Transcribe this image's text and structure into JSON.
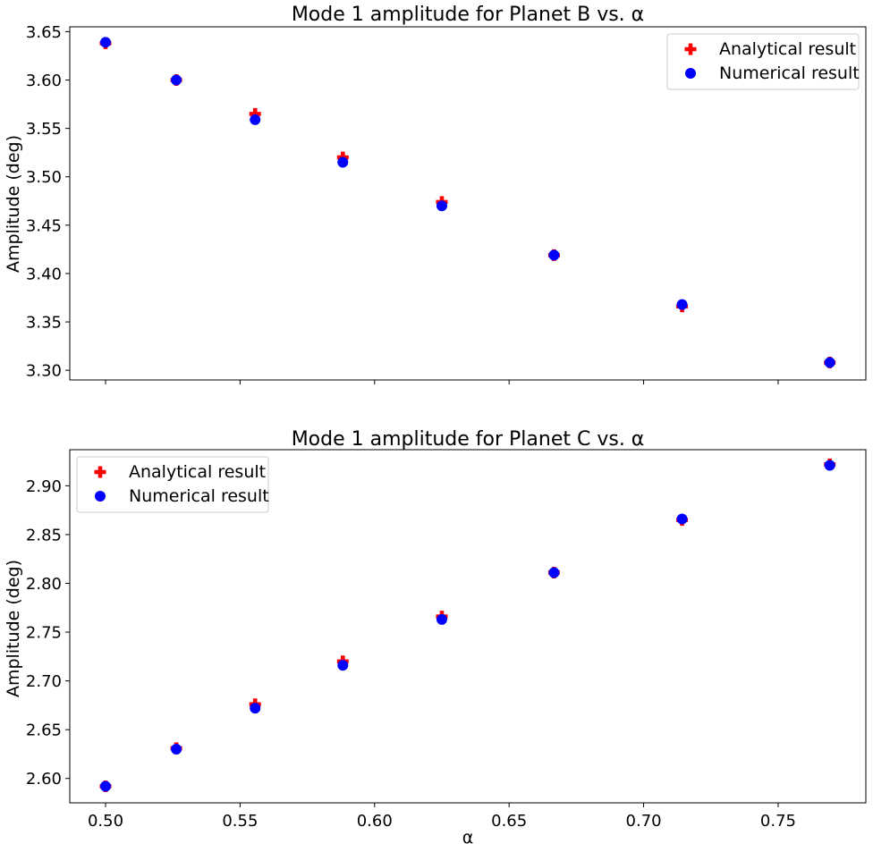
{
  "chart_data": [
    {
      "type": "scatter",
      "title": "Mode 1 amplitude for Planet B vs. α",
      "xlabel": "",
      "ylabel": "Amplitude (deg)",
      "xlim": [
        0.4867,
        0.7826
      ],
      "ylim": [
        3.29,
        3.655
      ],
      "xticks": [
        "0.50",
        "0.55",
        "0.60",
        "0.65",
        "0.70",
        "0.75"
      ],
      "xtick_values": [
        0.5,
        0.55,
        0.6,
        0.65,
        0.7,
        0.75
      ],
      "show_xticklabels": false,
      "yticks": [
        "3.30",
        "3.35",
        "3.40",
        "3.45",
        "3.50",
        "3.55",
        "3.60",
        "3.65"
      ],
      "ytick_values": [
        3.3,
        3.35,
        3.4,
        3.45,
        3.5,
        3.55,
        3.6,
        3.65
      ],
      "grid": false,
      "legend_position": "top-right",
      "series": [
        {
          "name": "Analytical result",
          "marker": "plus",
          "color": "#ff0000",
          "x": [
            0.5,
            0.5263,
            0.5556,
            0.5882,
            0.625,
            0.6667,
            0.7143,
            0.7692
          ],
          "y": [
            3.638,
            3.6,
            3.565,
            3.52,
            3.474,
            3.419,
            3.366,
            3.308
          ]
        },
        {
          "name": "Numerical result",
          "marker": "circle",
          "color": "#0000ff",
          "x": [
            0.5,
            0.5263,
            0.5556,
            0.5882,
            0.625,
            0.6667,
            0.7143,
            0.7692
          ],
          "y": [
            3.639,
            3.6,
            3.559,
            3.515,
            3.47,
            3.419,
            3.368,
            3.308
          ]
        }
      ]
    },
    {
      "type": "scatter",
      "title": "Mode 1 amplitude for Planet C vs. α",
      "xlabel": "α",
      "ylabel": "Amplitude (deg)",
      "xlim": [
        0.4867,
        0.7826
      ],
      "ylim": [
        2.575,
        2.937
      ],
      "xticks": [
        "0.50",
        "0.55",
        "0.60",
        "0.65",
        "0.70",
        "0.75"
      ],
      "xtick_values": [
        0.5,
        0.55,
        0.6,
        0.65,
        0.7,
        0.75
      ],
      "show_xticklabels": true,
      "yticks": [
        "2.60",
        "2.65",
        "2.70",
        "2.75",
        "2.80",
        "2.85",
        "2.90"
      ],
      "ytick_values": [
        2.6,
        2.65,
        2.7,
        2.75,
        2.8,
        2.85,
        2.9
      ],
      "grid": false,
      "legend_position": "top-left",
      "series": [
        {
          "name": "Analytical result",
          "marker": "plus",
          "color": "#ff0000",
          "x": [
            0.5,
            0.5263,
            0.5556,
            0.5882,
            0.625,
            0.6667,
            0.7143,
            0.7692
          ],
          "y": [
            2.592,
            2.631,
            2.676,
            2.72,
            2.766,
            2.811,
            2.865,
            2.922
          ]
        },
        {
          "name": "Numerical result",
          "marker": "circle",
          "color": "#0000ff",
          "x": [
            0.5,
            0.5263,
            0.5556,
            0.5882,
            0.625,
            0.6667,
            0.7143,
            0.7692
          ],
          "y": [
            2.592,
            2.63,
            2.672,
            2.716,
            2.763,
            2.811,
            2.866,
            2.921
          ]
        }
      ]
    }
  ]
}
